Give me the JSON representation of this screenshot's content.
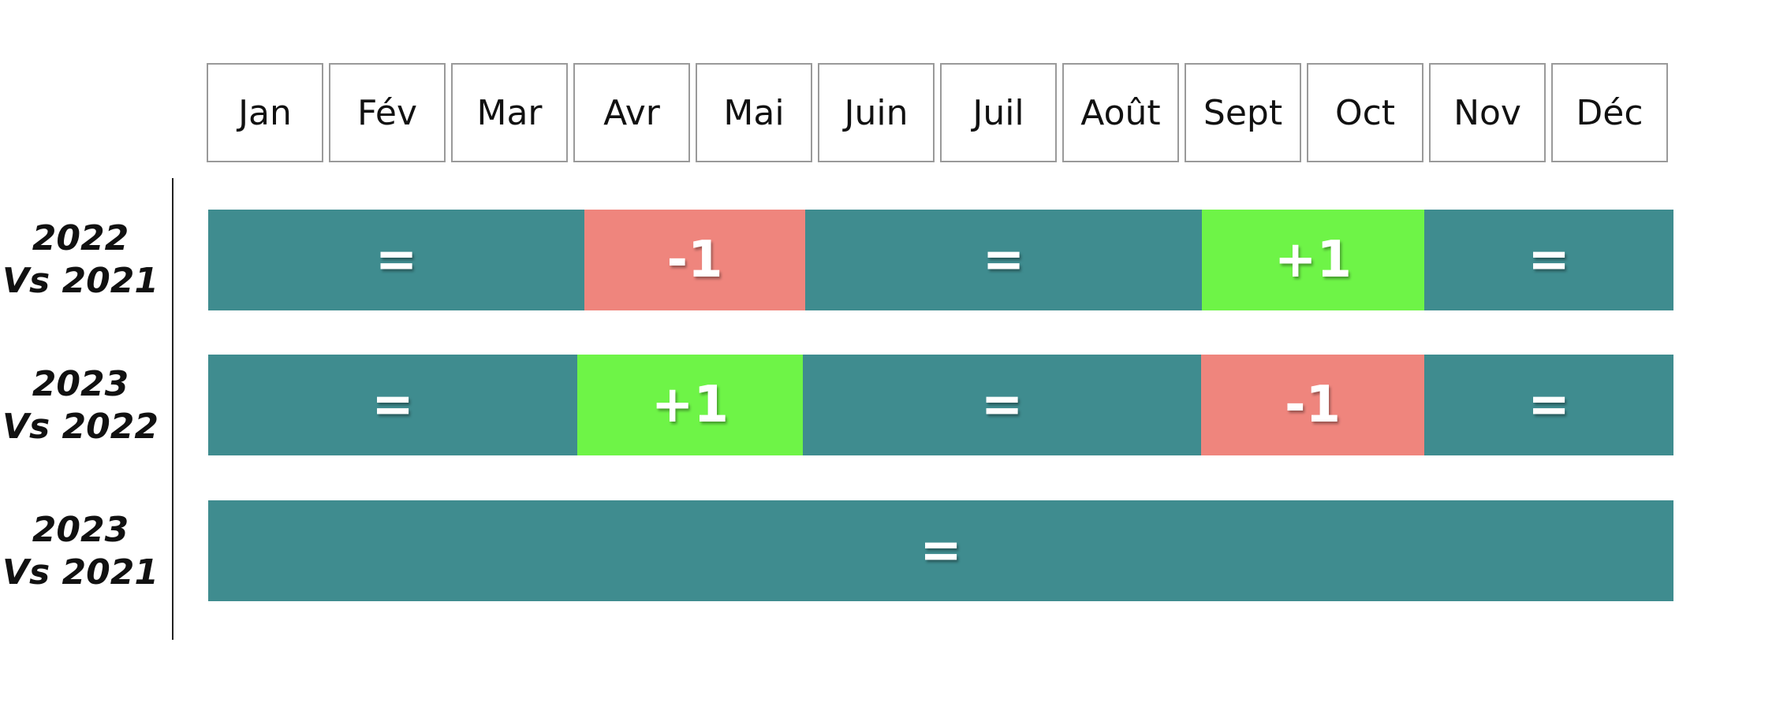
{
  "months": [
    "Jan",
    "Fév",
    "Mar",
    "Avr",
    "Mai",
    "Juin",
    "Juil",
    "Août",
    "Sept",
    "Oct",
    "Nov",
    "Déc"
  ],
  "colors": {
    "equal": "#3f8c8f",
    "minus": "#ef857d",
    "plus": "#6ef447"
  },
  "rows": [
    {
      "label_line1": "2022",
      "label_line2": "Vs 2021",
      "segments": [
        {
          "text": "=",
          "status": "equal",
          "start_month": 0,
          "end_month": 3.08
        },
        {
          "text": "-1",
          "status": "minus",
          "start_month": 3.08,
          "end_month": 4.89
        },
        {
          "text": "=",
          "status": "equal",
          "start_month": 4.89,
          "end_month": 8.14
        },
        {
          "text": "+1",
          "status": "plus",
          "start_month": 8.14,
          "end_month": 9.96
        },
        {
          "text": "=",
          "status": "equal",
          "start_month": 9.96,
          "end_month": 12
        }
      ]
    },
    {
      "label_line1": "2023",
      "label_line2": "Vs 2022",
      "segments": [
        {
          "text": "=",
          "status": "equal",
          "start_month": 0,
          "end_month": 3.02
        },
        {
          "text": "+1",
          "status": "plus",
          "start_month": 3.02,
          "end_month": 4.87
        },
        {
          "text": "=",
          "status": "equal",
          "start_month": 4.87,
          "end_month": 8.13
        },
        {
          "text": "-1",
          "status": "minus",
          "start_month": 8.13,
          "end_month": 9.96
        },
        {
          "text": "=",
          "status": "equal",
          "start_month": 9.96,
          "end_month": 12
        }
      ]
    },
    {
      "label_line1": "2023",
      "label_line2": "Vs 2021",
      "segments": [
        {
          "text": "=",
          "status": "equal",
          "start_month": 0,
          "end_month": 12
        }
      ]
    }
  ]
}
